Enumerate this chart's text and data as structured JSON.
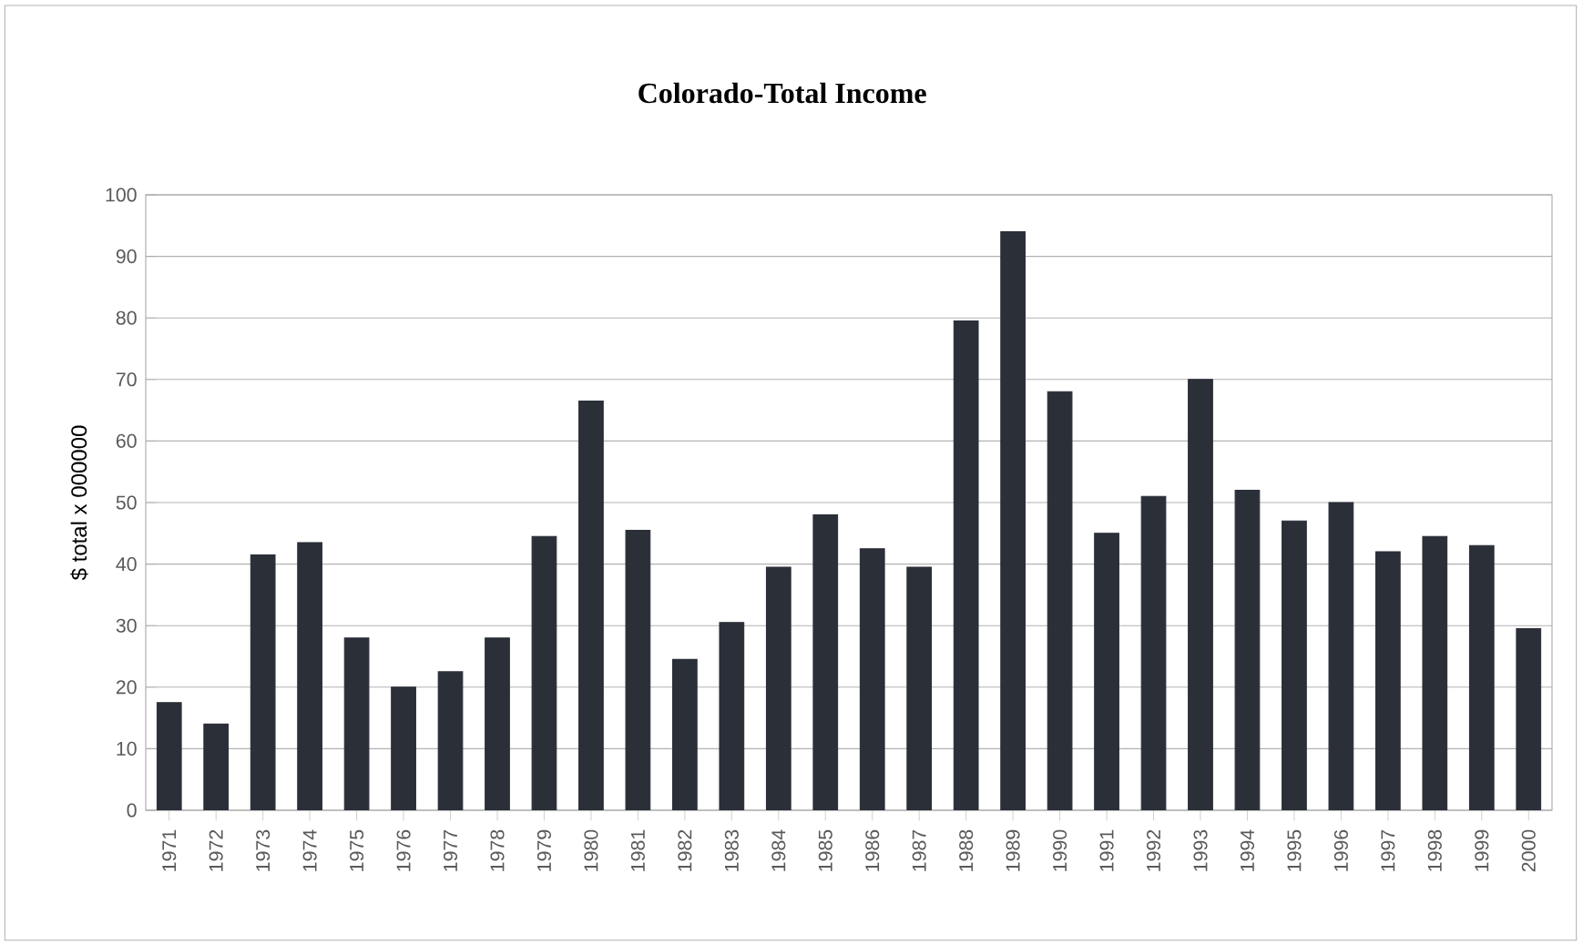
{
  "chart_data": {
    "type": "bar",
    "title": "Colorado-Total Income",
    "ylabel": "$ total x 000000",
    "categories": [
      "1971",
      "1972",
      "1973",
      "1974",
      "1975",
      "1976",
      "1977",
      "1978",
      "1979",
      "1980",
      "1981",
      "1982",
      "1983",
      "1984",
      "1985",
      "1986",
      "1987",
      "1988",
      "1989",
      "1990",
      "1991",
      "1992",
      "1993",
      "1994",
      "1995",
      "1996",
      "1997",
      "1998",
      "1999",
      "2000"
    ],
    "values": [
      17.5,
      14,
      41.5,
      43.5,
      28,
      20,
      22.5,
      28,
      44.5,
      66.5,
      45.5,
      24.5,
      30.5,
      39.5,
      48,
      42.5,
      39.5,
      79.5,
      94,
      68,
      45,
      51,
      70,
      52,
      47,
      50,
      42,
      44.5,
      43,
      29.5
    ],
    "color": "#2b2f38",
    "ylim": [
      0,
      100
    ],
    "yticks": [
      0,
      10,
      20,
      30,
      40,
      50,
      60,
      70,
      80,
      90,
      100
    ],
    "grid": "y"
  }
}
